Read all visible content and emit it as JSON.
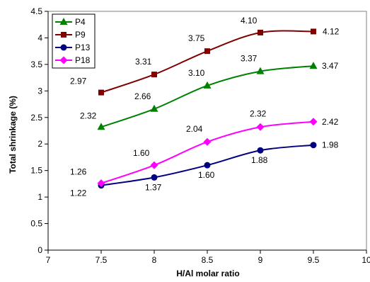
{
  "chart_data": {
    "type": "line",
    "xlabel": "H/Al molar ratio",
    "ylabel": "Total shrinkage (%)",
    "xlim": [
      7,
      10
    ],
    "ylim": [
      0,
      4.5
    ],
    "x_ticks": [
      7,
      7.5,
      8,
      8.5,
      9,
      9.5,
      10
    ],
    "y_ticks": [
      0,
      0.5,
      1,
      1.5,
      2,
      2.5,
      3,
      3.5,
      4,
      4.5
    ],
    "x_tick_labels": [
      "7",
      "7.5",
      "8",
      "8.5",
      "9",
      "9.5",
      "10"
    ],
    "y_tick_labels": [
      "0",
      "0.5",
      "1",
      "1.5",
      "2",
      "2.5",
      "3",
      "3.5",
      "4",
      "4.5"
    ],
    "legend_position": "top-left",
    "grid": false,
    "x": [
      7.5,
      8,
      8.5,
      9,
      9.5
    ],
    "series": [
      {
        "name": "P4",
        "values": [
          2.32,
          2.66,
          3.1,
          3.37,
          3.47
        ],
        "labels": [
          "2.32",
          "2.66",
          "3.10",
          "3.37",
          "3.47"
        ],
        "color": "#008000",
        "marker": "triangle"
      },
      {
        "name": "P9",
        "values": [
          2.97,
          3.31,
          3.75,
          4.1,
          4.12
        ],
        "labels": [
          "2.97",
          "3.31",
          "3.75",
          "4.10",
          "4.12"
        ],
        "color": "#800000",
        "marker": "square"
      },
      {
        "name": "P13",
        "values": [
          1.22,
          1.37,
          1.6,
          1.88,
          1.98
        ],
        "labels": [
          "1.22",
          "1.37",
          "1.60",
          "1.88",
          "1.98"
        ],
        "color": "#000080",
        "marker": "circle"
      },
      {
        "name": "P18",
        "values": [
          1.26,
          1.6,
          2.04,
          2.32,
          2.42
        ],
        "labels": [
          "1.26",
          "1.60",
          "2.04",
          "2.32",
          "2.42"
        ],
        "color": "#ff00ff",
        "marker": "diamond"
      }
    ]
  }
}
